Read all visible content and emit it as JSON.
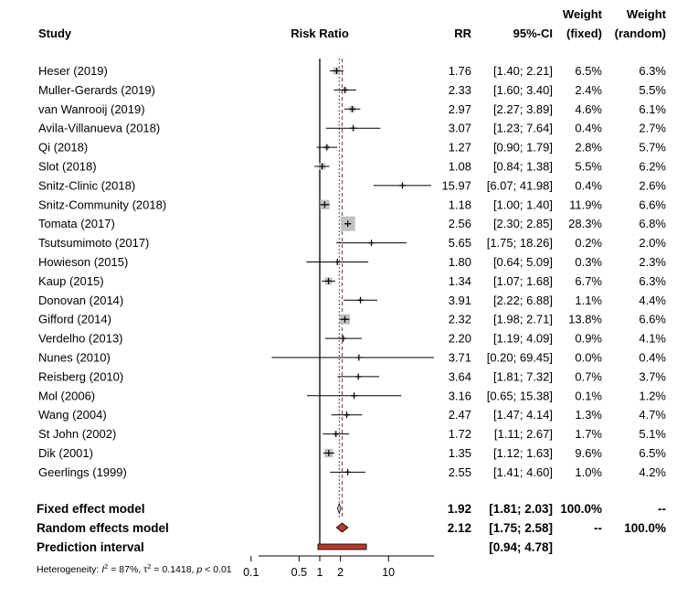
{
  "headers": {
    "study": "Study",
    "plot": "Risk Ratio",
    "rr": "RR",
    "ci": "95%-CI",
    "weight_fixed_1": "Weight",
    "weight_fixed_2": "(fixed)",
    "weight_random_1": "Weight",
    "weight_random_2": "(random)"
  },
  "chart_data": {
    "type": "forest",
    "x_scale": "log",
    "x_ticks": [
      0.1,
      0.5,
      1,
      2,
      10
    ],
    "x_tick_labels": [
      "0.1",
      "0.5",
      "1",
      "2",
      "10"
    ],
    "null_line": 1,
    "fixed_line": 1.92,
    "random_line": 2.12,
    "studies": [
      {
        "name": "Heser (2019)",
        "rr": 1.76,
        "lo": 1.4,
        "hi": 2.21,
        "rr_text": "1.76",
        "ci_text": "[1.40; 2.21]",
        "w_fixed": "6.5%",
        "w_random": "6.3%",
        "w": 6.5
      },
      {
        "name": "Muller-Gerards (2019)",
        "rr": 2.33,
        "lo": 1.6,
        "hi": 3.4,
        "rr_text": "2.33",
        "ci_text": "[1.60; 3.40]",
        "w_fixed": "2.4%",
        "w_random": "5.5%",
        "w": 2.4
      },
      {
        "name": "van Wanrooij (2019)",
        "rr": 2.97,
        "lo": 2.27,
        "hi": 3.89,
        "rr_text": "2.97",
        "ci_text": "[2.27; 3.89]",
        "w_fixed": "4.6%",
        "w_random": "6.1%",
        "w": 4.6
      },
      {
        "name": "Avila-Villanueva (2018)",
        "rr": 3.07,
        "lo": 1.23,
        "hi": 7.64,
        "rr_text": "3.07",
        "ci_text": "[1.23; 7.64]",
        "w_fixed": "0.4%",
        "w_random": "2.7%",
        "w": 0.4
      },
      {
        "name": "Qi (2018)",
        "rr": 1.27,
        "lo": 0.9,
        "hi": 1.79,
        "rr_text": "1.27",
        "ci_text": "[0.90; 1.79]",
        "w_fixed": "2.8%",
        "w_random": "5.7%",
        "w": 2.8
      },
      {
        "name": "Slot (2018)",
        "rr": 1.08,
        "lo": 0.84,
        "hi": 1.38,
        "rr_text": "1.08",
        "ci_text": "[0.84; 1.38]",
        "w_fixed": "5.5%",
        "w_random": "6.2%",
        "w": 5.5
      },
      {
        "name": "Snitz-Clinic (2018)",
        "rr": 15.97,
        "lo": 6.07,
        "hi": 41.98,
        "rr_text": "15.97",
        "ci_text": "[6.07; 41.98]",
        "w_fixed": "0.4%",
        "w_random": "2.6%",
        "w": 0.4
      },
      {
        "name": "Snitz-Community (2018)",
        "rr": 1.18,
        "lo": 1.0,
        "hi": 1.4,
        "rr_text": "1.18",
        "ci_text": "[1.00; 1.40]",
        "w_fixed": "11.9%",
        "w_random": "6.6%",
        "w": 11.9
      },
      {
        "name": "Tomata (2017)",
        "rr": 2.56,
        "lo": 2.3,
        "hi": 2.85,
        "rr_text": "2.56",
        "ci_text": "[2.30; 2.85]",
        "w_fixed": "28.3%",
        "w_random": "6.8%",
        "w": 28.3
      },
      {
        "name": "Tsutsumimoto (2017)",
        "rr": 5.65,
        "lo": 1.75,
        "hi": 18.26,
        "rr_text": "5.65",
        "ci_text": "[1.75; 18.26]",
        "w_fixed": "0.2%",
        "w_random": "2.0%",
        "w": 0.2
      },
      {
        "name": "Howieson (2015)",
        "rr": 1.8,
        "lo": 0.64,
        "hi": 5.09,
        "rr_text": "1.80",
        "ci_text": "[0.64; 5.09]",
        "w_fixed": "0.3%",
        "w_random": "2.3%",
        "w": 0.3
      },
      {
        "name": "Kaup (2015)",
        "rr": 1.34,
        "lo": 1.07,
        "hi": 1.68,
        "rr_text": "1.34",
        "ci_text": "[1.07; 1.68]",
        "w_fixed": "6.7%",
        "w_random": "6.3%",
        "w": 6.7
      },
      {
        "name": "Donovan (2014)",
        "rr": 3.91,
        "lo": 2.22,
        "hi": 6.88,
        "rr_text": "3.91",
        "ci_text": "[2.22; 6.88]",
        "w_fixed": "1.1%",
        "w_random": "4.4%",
        "w": 1.1
      },
      {
        "name": "Gifford (2014)",
        "rr": 2.32,
        "lo": 1.98,
        "hi": 2.71,
        "rr_text": "2.32",
        "ci_text": "[1.98; 2.71]",
        "w_fixed": "13.8%",
        "w_random": "6.6%",
        "w": 13.8
      },
      {
        "name": "Verdelho (2013)",
        "rr": 2.2,
        "lo": 1.19,
        "hi": 4.09,
        "rr_text": "2.20",
        "ci_text": "[1.19; 4.09]",
        "w_fixed": "0.9%",
        "w_random": "4.1%",
        "w": 0.9
      },
      {
        "name": "Nunes (2010)",
        "rr": 3.71,
        "lo": 0.2,
        "hi": 69.45,
        "rr_text": "3.71",
        "ci_text": "[0.20; 69.45]",
        "w_fixed": "0.0%",
        "w_random": "0.4%",
        "w": 0.0
      },
      {
        "name": "Reisberg (2010)",
        "rr": 3.64,
        "lo": 1.81,
        "hi": 7.32,
        "rr_text": "3.64",
        "ci_text": "[1.81; 7.32]",
        "w_fixed": "0.7%",
        "w_random": "3.7%",
        "w": 0.7
      },
      {
        "name": "Mol (2006)",
        "rr": 3.16,
        "lo": 0.65,
        "hi": 15.38,
        "rr_text": "3.16",
        "ci_text": "[0.65; 15.38]",
        "w_fixed": "0.1%",
        "w_random": "1.2%",
        "w": 0.1
      },
      {
        "name": "Wang (2004)",
        "rr": 2.47,
        "lo": 1.47,
        "hi": 4.14,
        "rr_text": "2.47",
        "ci_text": "[1.47; 4.14]",
        "w_fixed": "1.3%",
        "w_random": "4.7%",
        "w": 1.3
      },
      {
        "name": "St John (2002)",
        "rr": 1.72,
        "lo": 1.11,
        "hi": 2.67,
        "rr_text": "1.72",
        "ci_text": "[1.11; 2.67]",
        "w_fixed": "1.7%",
        "w_random": "5.1%",
        "w": 1.7
      },
      {
        "name": "Dik (2001)",
        "rr": 1.35,
        "lo": 1.12,
        "hi": 1.63,
        "rr_text": "1.35",
        "ci_text": "[1.12; 1.63]",
        "w_fixed": "9.6%",
        "w_random": "6.5%",
        "w": 9.6
      },
      {
        "name": "Geerlings (1999)",
        "rr": 2.55,
        "lo": 1.41,
        "hi": 4.6,
        "rr_text": "2.55",
        "ci_text": "[1.41; 4.60]",
        "w_fixed": "1.0%",
        "w_random": "4.2%",
        "w": 1.0
      }
    ],
    "fixed_model": {
      "name": "Fixed effect model",
      "rr": 1.92,
      "lo": 1.81,
      "hi": 2.03,
      "rr_text": "1.92",
      "ci_text": "[1.81; 2.03]",
      "w_fixed": "100.0%",
      "w_random": "--"
    },
    "random_model": {
      "name": "Random effects model",
      "rr": 2.12,
      "lo": 1.75,
      "hi": 2.58,
      "rr_text": "2.12",
      "ci_text": "[1.75; 2.58]",
      "w_fixed": "--",
      "w_random": "100.0%"
    },
    "prediction": {
      "name": "Prediction interval",
      "lo": 0.94,
      "hi": 4.78,
      "ci_text": "[0.94; 4.78]"
    },
    "heterogeneity": {
      "prefix": "Heterogeneity: ",
      "i2": "87%",
      "tau2": "0.1418",
      "p": "< 0.01"
    },
    "colors": {
      "study_box": "#c0c0c0",
      "random_diamond": "#b5382a",
      "prediction_bar": "#b5382a",
      "null_line": "#000000",
      "fixed_line": "#555555",
      "random_line": "#9b2d45"
    }
  }
}
